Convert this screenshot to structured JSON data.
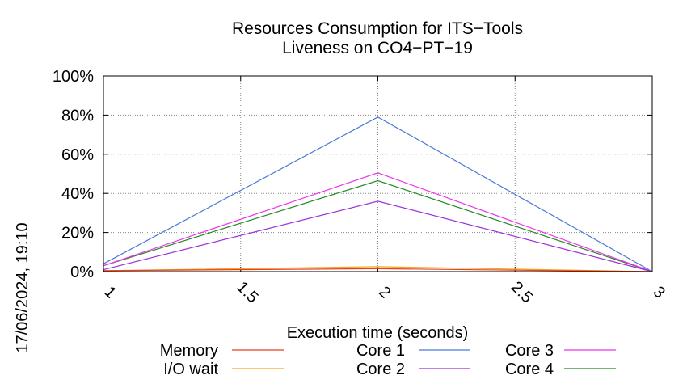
{
  "chart_data": {
    "type": "line",
    "title": "Resources Consumption for ITS−Tools",
    "subtitle": "Liveness on CO4−PT−19",
    "xlabel": "Execution time (seconds)",
    "ylabel": "",
    "side_label": "17/06/2024, 19:10",
    "xlim": [
      1,
      3
    ],
    "ylim": [
      0,
      100
    ],
    "x_ticks": [
      "1",
      "1.5",
      "2",
      "2.5",
      "3"
    ],
    "y_ticks": [
      "0%",
      "20%",
      "40%",
      "60%",
      "80%",
      "100%"
    ],
    "grid": true,
    "legend_position": "bottom",
    "x": [
      1,
      2,
      3
    ],
    "series": [
      {
        "name": "Memory",
        "color": "#e8401c",
        "values": [
          0.5,
          1.5,
          0
        ]
      },
      {
        "name": "I/O wait",
        "color": "#f5a623",
        "values": [
          0.5,
          2.5,
          0
        ]
      },
      {
        "name": "Core 1",
        "color": "#4a7bd4",
        "values": [
          4,
          79,
          0
        ]
      },
      {
        "name": "Core 2",
        "color": "#9b30d9",
        "values": [
          1,
          36,
          0
        ]
      },
      {
        "name": "Core 3",
        "color": "#ee33ee",
        "values": [
          3,
          50.5,
          0
        ]
      },
      {
        "name": "Core 4",
        "color": "#228822",
        "values": [
          3,
          46.5,
          0
        ]
      }
    ]
  }
}
